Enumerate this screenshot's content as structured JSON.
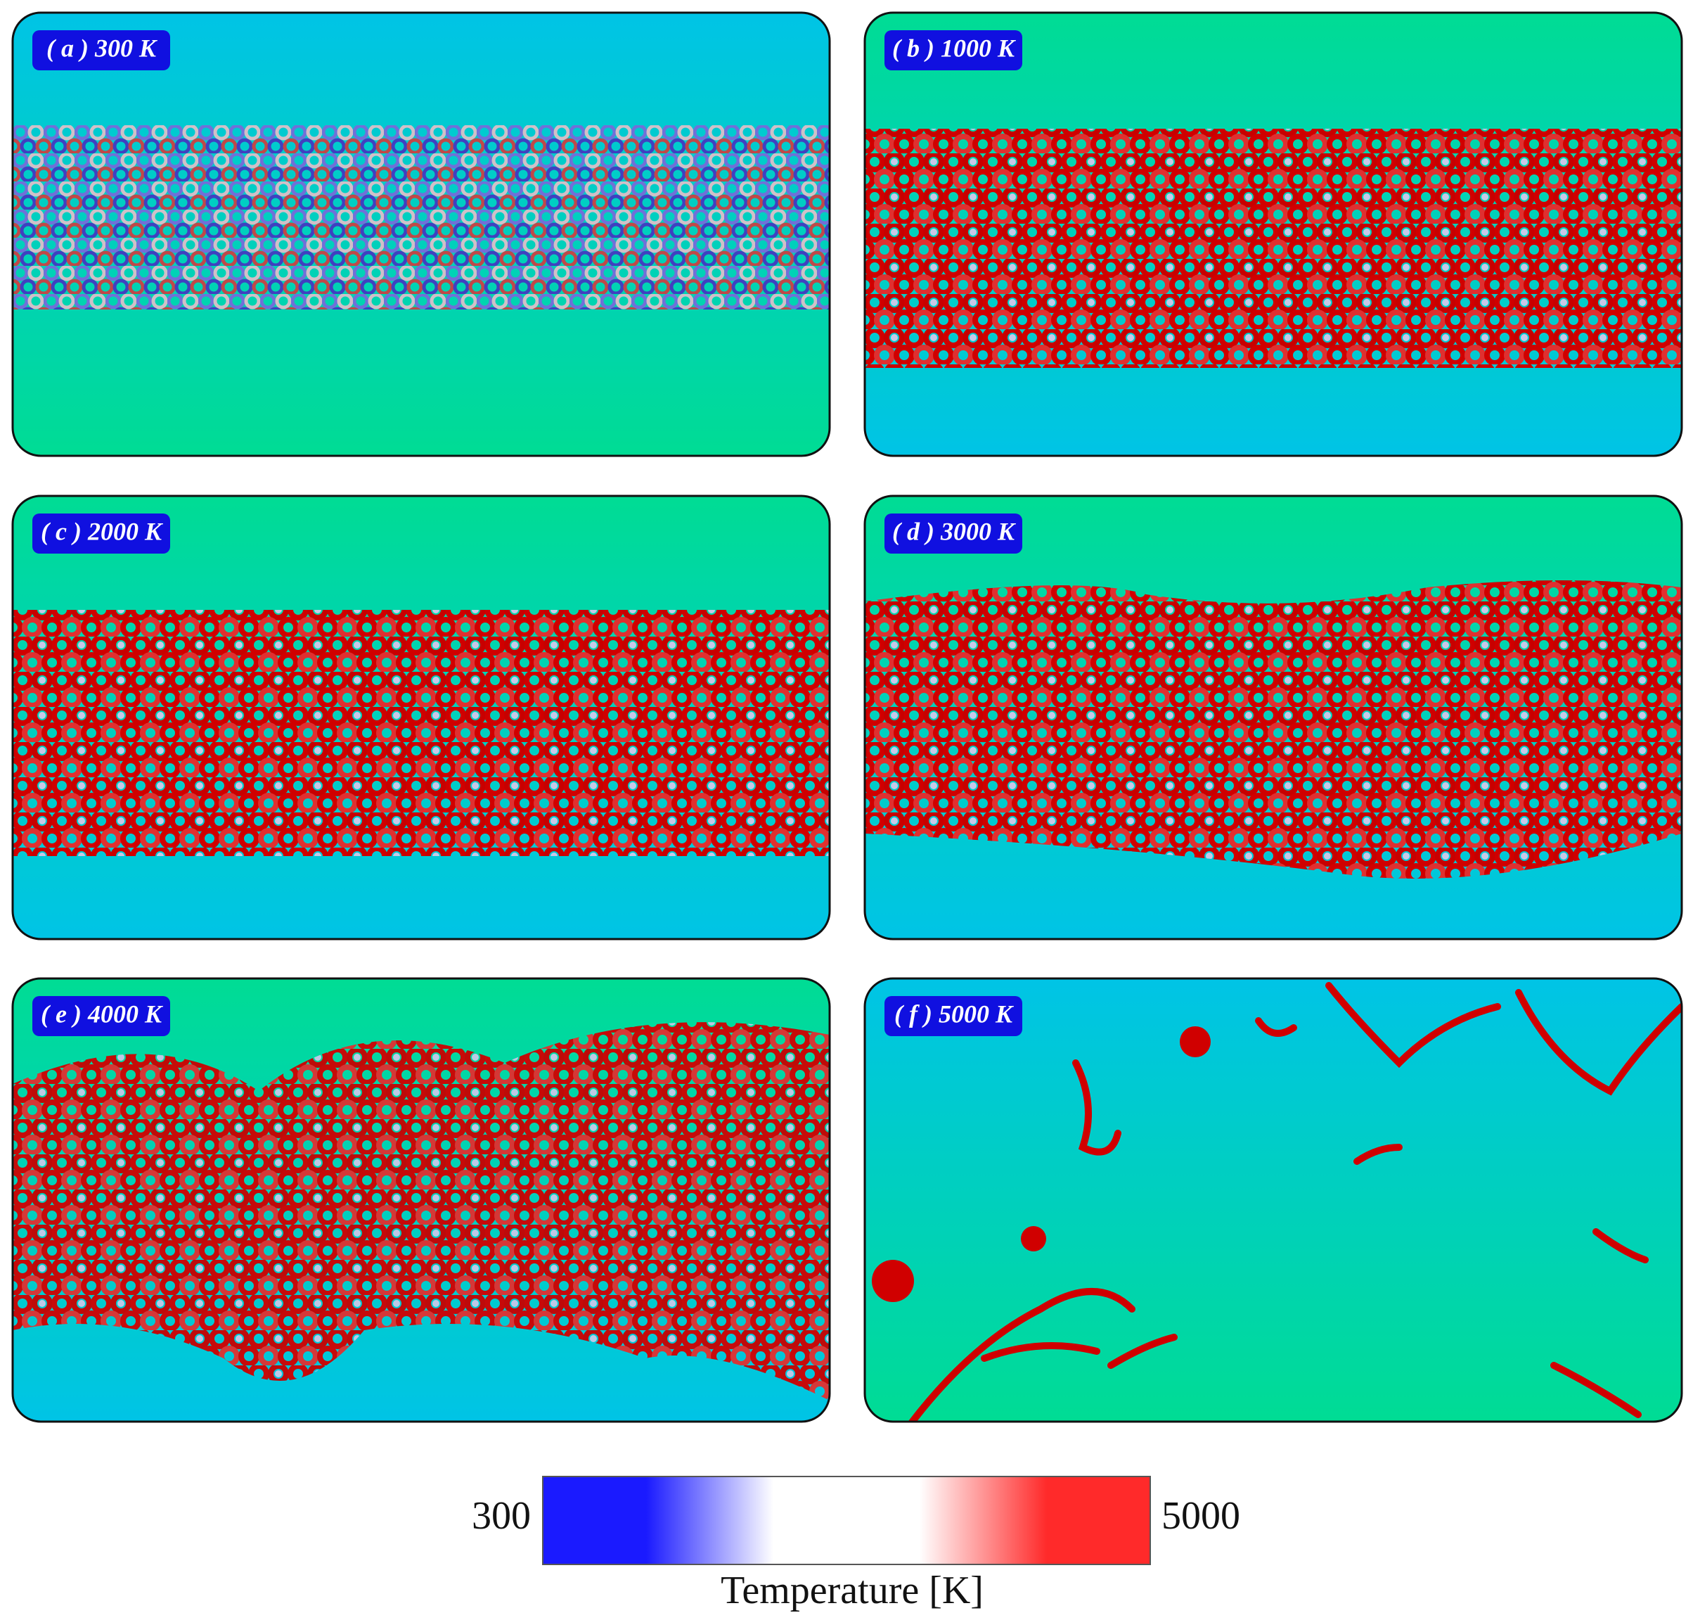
{
  "panels": [
    {
      "label": "( a ) 300 K"
    },
    {
      "label": "( b ) 1000 K"
    },
    {
      "label": "( c ) 2000 K"
    },
    {
      "label": "( d ) 3000 K"
    },
    {
      "label": "( e ) 4000 K"
    },
    {
      "label": "( f ) 5000 K"
    }
  ],
  "colorbar": {
    "min_label": "300",
    "max_label": "5000",
    "title": "Temperature [K]",
    "colors": [
      "#1a1aff",
      "#ffffff",
      "#ff2a2a"
    ]
  }
}
